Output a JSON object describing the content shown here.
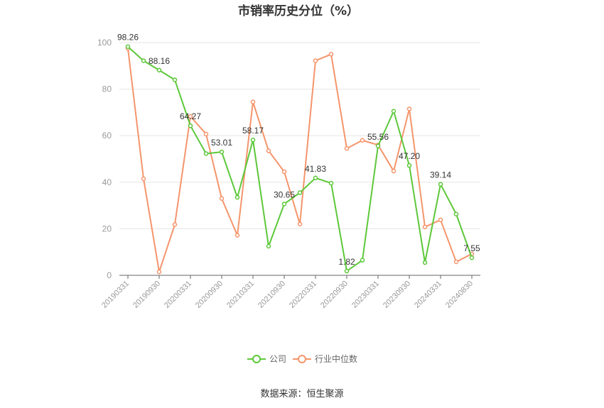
{
  "chart_data": {
    "type": "line",
    "title": "市销率历史分位（%）",
    "x": [
      "20190331",
      "20190630",
      "20190930",
      "20191231",
      "20200331",
      "20200630",
      "20200930",
      "20201231",
      "20210331",
      "20210630",
      "20210930",
      "20211231",
      "20220331",
      "20220630",
      "20220930",
      "20221231",
      "20230331",
      "20230630",
      "20230930",
      "20231231",
      "20240331",
      "20240630",
      "20240830"
    ],
    "x_tick_labels": [
      "20190331",
      "20190930",
      "20200331",
      "20200930",
      "20210331",
      "20210930",
      "20220331",
      "20220930",
      "20230331",
      "20230930",
      "20240331",
      "20240830"
    ],
    "ylim": [
      0,
      100
    ],
    "yticks": [
      0,
      20,
      40,
      60,
      80,
      100
    ],
    "grid": true,
    "legend_position": "bottom",
    "series": [
      {
        "name": "公司",
        "color": "#5dc83a",
        "values": [
          98.26,
          92.2,
          88.16,
          84.0,
          64.27,
          52.3,
          53.01,
          33.5,
          58.17,
          12.5,
          30.65,
          35.5,
          41.83,
          39.6,
          1.82,
          6.5,
          55.56,
          70.5,
          47.2,
          5.5,
          39.14,
          26.3,
          7.55
        ],
        "data_labels": [
          {
            "index": 0,
            "text": "98.26"
          },
          {
            "index": 2,
            "text": "88.16"
          },
          {
            "index": 4,
            "text": "64.27"
          },
          {
            "index": 6,
            "text": "53.01"
          },
          {
            "index": 8,
            "text": "58.17"
          },
          {
            "index": 10,
            "text": "30.65"
          },
          {
            "index": 12,
            "text": "41.83"
          },
          {
            "index": 14,
            "text": "1.82"
          },
          {
            "index": 16,
            "text": "55.56"
          },
          {
            "index": 18,
            "text": "47.20"
          },
          {
            "index": 20,
            "text": "39.14"
          },
          {
            "index": 22,
            "text": "7.55"
          }
        ]
      },
      {
        "name": "行业中位数",
        "color": "#f4956c",
        "values": [
          97.5,
          41.5,
          1.5,
          21.8,
          68.3,
          60.7,
          33.0,
          17.2,
          74.5,
          53.5,
          44.5,
          22.0,
          92.2,
          95.0,
          54.5,
          58.0,
          56.0,
          44.8,
          71.5,
          20.8,
          23.8,
          5.8,
          9.2
        ]
      }
    ]
  },
  "source_text": "数据来源：恒生聚源"
}
